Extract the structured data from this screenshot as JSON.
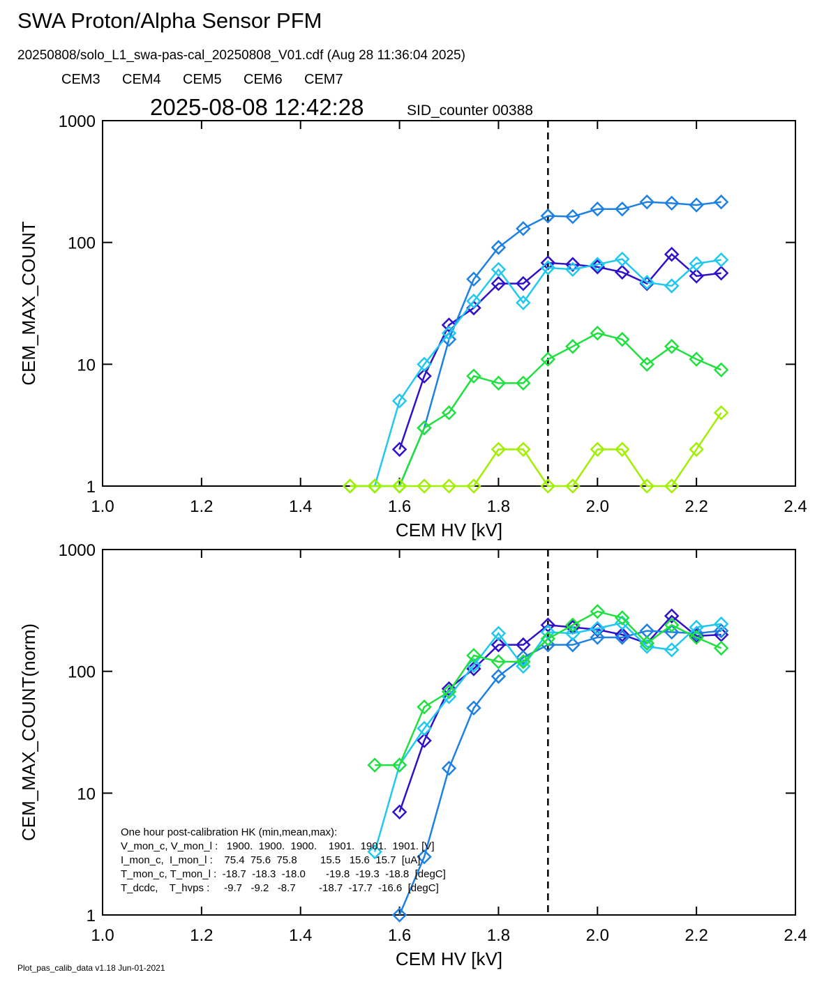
{
  "header": {
    "title": "SWA Proton/Alpha Sensor PFM",
    "subtitle": "20250808/solo_L1_swa-pas-cal_20250808_V01.cdf  (Aug 28 11:36:04 2025)",
    "timestamp": "2025-08-08 12:42:28",
    "sid": "SID_counter 00388"
  },
  "chart_data": [
    {
      "type": "line",
      "log_y": true,
      "xlabel": "CEM HV [kV]",
      "ylabel": "CEM_MAX_COUNT",
      "xlim": [
        1.0,
        2.4
      ],
      "ylim": [
        1,
        1000
      ],
      "xticks": [
        {
          "value": 1.0,
          "label": "1.0"
        },
        {
          "value": 1.2,
          "label": "1.2"
        },
        {
          "value": 1.4,
          "label": "1.4"
        },
        {
          "value": 1.6,
          "label": "1.6"
        },
        {
          "value": 1.8,
          "label": "1.8"
        },
        {
          "value": 2.0,
          "label": "2.0"
        },
        {
          "value": 2.2,
          "label": "2.2"
        },
        {
          "value": 2.4,
          "label": "2.4"
        }
      ],
      "yticks": [
        1,
        10,
        100,
        1000
      ],
      "vline": 1.9,
      "x": [
        1.5,
        1.55,
        1.6,
        1.65,
        1.7,
        1.75,
        1.8,
        1.85,
        1.9,
        1.95,
        2.0,
        2.05,
        2.1,
        2.15,
        2.2,
        2.25
      ],
      "series": [
        {
          "name": "CEM3",
          "color": "#3010c8",
          "values": [
            null,
            null,
            2,
            8,
            21,
            29,
            46,
            46,
            68,
            66,
            63,
            57,
            46,
            80,
            53,
            56
          ]
        },
        {
          "name": "CEM4",
          "color": "#1e80e0",
          "values": [
            null,
            null,
            1,
            3,
            16,
            50,
            91,
            130,
            165,
            163,
            188,
            188,
            215,
            210,
            203,
            215
          ]
        },
        {
          "name": "CEM5",
          "color": "#20c8f0",
          "values": [
            null,
            1,
            5,
            10,
            18,
            33,
            60,
            32,
            62,
            60,
            66,
            73,
            47,
            44,
            67,
            72
          ]
        },
        {
          "name": "CEM6",
          "color": "#20e040",
          "values": [
            1,
            1,
            1,
            3,
            4,
            8,
            7,
            7,
            11,
            14,
            18,
            16,
            10,
            14,
            11,
            9
          ]
        },
        {
          "name": "CEM7",
          "color": "#a0f000",
          "values": [
            1,
            1,
            1,
            1,
            1,
            1,
            2,
            2,
            1,
            1,
            2,
            2,
            1,
            1,
            2,
            4
          ]
        }
      ]
    },
    {
      "type": "line",
      "log_y": true,
      "xlabel": "CEM HV [kV]",
      "ylabel": "CEM_MAX_COUNT(norm)",
      "xlim": [
        1.0,
        2.4
      ],
      "ylim": [
        1,
        1000
      ],
      "xticks": [
        {
          "value": 1.0,
          "label": "1.0"
        },
        {
          "value": 1.2,
          "label": "1.2"
        },
        {
          "value": 1.4,
          "label": "1.4"
        },
        {
          "value": 1.6,
          "label": "1.6"
        },
        {
          "value": 1.8,
          "label": "1.8"
        },
        {
          "value": 2.0,
          "label": "2.0"
        },
        {
          "value": 2.2,
          "label": "2.2"
        },
        {
          "value": 2.4,
          "label": "2.4"
        }
      ],
      "yticks": [
        1,
        10,
        100,
        1000
      ],
      "vline": 1.9,
      "x": [
        1.5,
        1.55,
        1.6,
        1.65,
        1.7,
        1.75,
        1.8,
        1.85,
        1.9,
        1.95,
        2.0,
        2.05,
        2.1,
        2.15,
        2.2,
        2.25
      ],
      "series": [
        {
          "color": "#3010c8",
          "values": [
            null,
            null,
            7,
            27,
            72,
            105,
            165,
            165,
            240,
            230,
            220,
            200,
            170,
            285,
            195,
            200
          ]
        },
        {
          "color": "#1e80e0",
          "values": [
            null,
            null,
            1,
            3,
            16,
            50,
            91,
            130,
            165,
            165,
            190,
            190,
            215,
            210,
            205,
            215
          ]
        },
        {
          "color": "#20c8f0",
          "values": [
            null,
            3.3,
            17,
            34,
            62,
            112,
            205,
            110,
            210,
            205,
            225,
            250,
            160,
            150,
            230,
            245
          ]
        },
        {
          "color": "#20e040",
          "values": [
            null,
            17,
            17,
            51,
            68,
            135,
            120,
            120,
            185,
            240,
            310,
            275,
            170,
            240,
            190,
            155
          ]
        }
      ],
      "annotation": [
        "One hour post-calibration HK (min,mean,max):",
        "V_mon_c, V_mon_l :   1900.  1900.  1900.    1901.  1901.  1901. [V]",
        "I_mon_c,  I_mon_l :    75.4  75.6  75.8        15.5   15.6  15.7  [uA]",
        "T_mon_c, T_mon_l :  -18.7  -18.3  -18.0       -19.8  -19.3  -18.8  [degC]",
        "T_dcdc,    T_hvps :     -9.7   -9.2   -8.7        -18.7  -17.7  -16.6  [degC]"
      ]
    }
  ],
  "footer": "Plot_pas_calib_data v1.18 Jun-01-2021"
}
